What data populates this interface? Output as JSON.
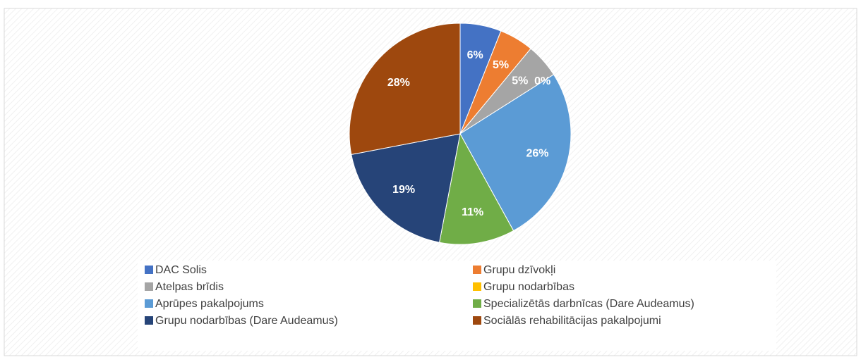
{
  "chart_data": {
    "type": "pie",
    "categories": [
      "DAC Solis",
      "Grupu dzīvokļi",
      "Atelpas brīdis",
      "Grupu nodarbības",
      "Aprūpes pakalpojums",
      "Specializētās darbnīcas (Dare Audeamus)",
      "Grupu nodarbības (Dare Audeamus)",
      "Sociālās rehabilitācijas pakalpojumi"
    ],
    "values": [
      6,
      5,
      5,
      0,
      26,
      11,
      19,
      28
    ],
    "value_labels": [
      "6%",
      "5%",
      "5%",
      "0%",
      "26%",
      "11%",
      "19%",
      "28%"
    ],
    "colors": [
      "#4472c4",
      "#ed7d31",
      "#a5a5a5",
      "#ffc000",
      "#5b9bd5",
      "#70ad47",
      "#264478",
      "#9e480e"
    ],
    "legend": "bottom"
  }
}
